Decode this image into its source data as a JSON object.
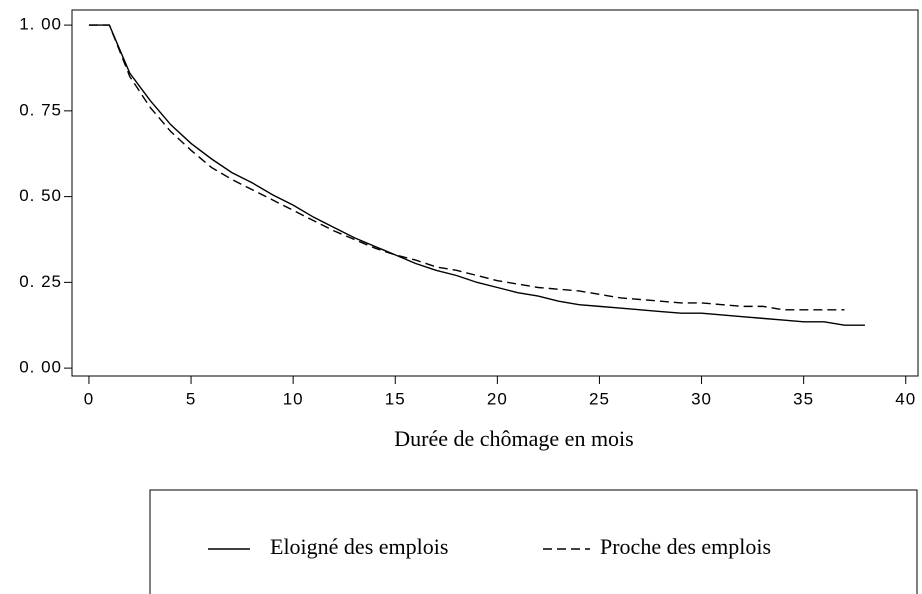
{
  "chart_data": {
    "type": "line",
    "x_label": "Durée de chômage en mois",
    "x": [
      0,
      1,
      2,
      3,
      4,
      5,
      6,
      7,
      8,
      9,
      10,
      11,
      12,
      13,
      14,
      15,
      16,
      17,
      18,
      19,
      20,
      21,
      22,
      23,
      24,
      25,
      26,
      27,
      28,
      29,
      30,
      31,
      32,
      33,
      34,
      35,
      36,
      37,
      38
    ],
    "series": [
      {
        "name": "Eloigné des emplois",
        "color": "#000000",
        "dash": "solid",
        "values": [
          1,
          1,
          0.86,
          0.78,
          0.71,
          0.655,
          0.61,
          0.57,
          0.54,
          0.505,
          0.475,
          0.44,
          0.41,
          0.38,
          0.355,
          0.33,
          0.305,
          0.285,
          0.27,
          0.25,
          0.235,
          0.22,
          0.21,
          0.195,
          0.185,
          0.18,
          0.175,
          0.17,
          0.165,
          0.16,
          0.16,
          0.155,
          0.15,
          0.145,
          0.14,
          0.135,
          0.135,
          0.125,
          0.125
        ]
      },
      {
        "name": "Proche des emplois",
        "color": "#000000",
        "dash": "dashed",
        "values": [
          1,
          1,
          0.85,
          0.76,
          0.69,
          0.635,
          0.585,
          0.55,
          0.52,
          0.49,
          0.46,
          0.43,
          0.4,
          0.375,
          0.35,
          0.33,
          0.315,
          0.295,
          0.285,
          0.27,
          0.255,
          0.245,
          0.235,
          0.23,
          0.225,
          0.215,
          0.205,
          0.2,
          0.195,
          0.19,
          0.19,
          0.185,
          0.18,
          0.18,
          0.17,
          0.17,
          0.17,
          0.17,
          null
        ]
      }
    ],
    "xlim": [
      -0.83,
      40.6
    ],
    "xticks": [
      0,
      5,
      10,
      15,
      20,
      25,
      30,
      35,
      40
    ],
    "ylim": [
      -0.023,
      1.044
    ],
    "yticks": [
      {
        "value": 0,
        "label": "0. 00"
      },
      {
        "value": 0.25,
        "label": "0. 25"
      },
      {
        "value": 0.5,
        "label": "0. 50"
      },
      {
        "value": 0.75,
        "label": "0. 75"
      },
      {
        "value": 1,
        "label": "1. 00"
      }
    ],
    "grid": false,
    "legend": "bottom"
  }
}
